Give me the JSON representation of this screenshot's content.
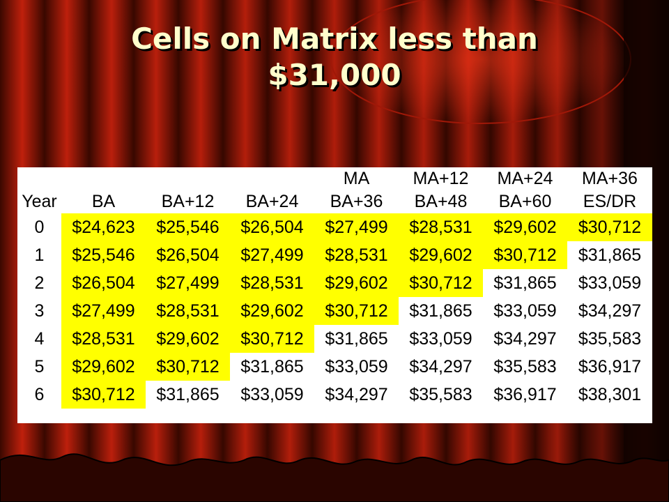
{
  "slide": {
    "title_line1": "Cells on Matrix less than",
    "title_line2": "$31,000"
  },
  "colors": {
    "highlight": "#ffff00",
    "title_text": "#ffffcc",
    "curtain_red": "#b01a0a",
    "curtain_dark": "#1a0300"
  },
  "table": {
    "header_row1": [
      "",
      "",
      "",
      "",
      "MA",
      "MA+12",
      "MA+24",
      "MA+36"
    ],
    "header_row2": [
      "Year",
      "BA",
      "BA+12",
      "BA+24",
      "BA+36",
      "BA+48",
      "BA+60",
      "ES/DR"
    ],
    "rows": [
      {
        "year": "0",
        "cells": [
          "$24,623",
          "$25,546",
          "$26,504",
          "$27,499",
          "$28,531",
          "$29,602",
          "$30,712"
        ]
      },
      {
        "year": "1",
        "cells": [
          "$25,546",
          "$26,504",
          "$27,499",
          "$28,531",
          "$29,602",
          "$30,712",
          "$31,865"
        ]
      },
      {
        "year": "2",
        "cells": [
          "$26,504",
          "$27,499",
          "$28,531",
          "$29,602",
          "$30,712",
          "$31,865",
          "$33,059"
        ]
      },
      {
        "year": "3",
        "cells": [
          "$27,499",
          "$28,531",
          "$29,602",
          "$30,712",
          "$31,865",
          "$33,059",
          "$34,297"
        ]
      },
      {
        "year": "4",
        "cells": [
          "$28,531",
          "$29,602",
          "$30,712",
          "$31,865",
          "$33,059",
          "$34,297",
          "$35,583"
        ]
      },
      {
        "year": "5",
        "cells": [
          "$29,602",
          "$30,712",
          "$31,865",
          "$33,059",
          "$34,297",
          "$35,583",
          "$36,917"
        ]
      },
      {
        "year": "6",
        "cells": [
          "$30,712",
          "$31,865",
          "$33,059",
          "$34,297",
          "$35,583",
          "$36,917",
          "$38,301"
        ]
      }
    ]
  }
}
